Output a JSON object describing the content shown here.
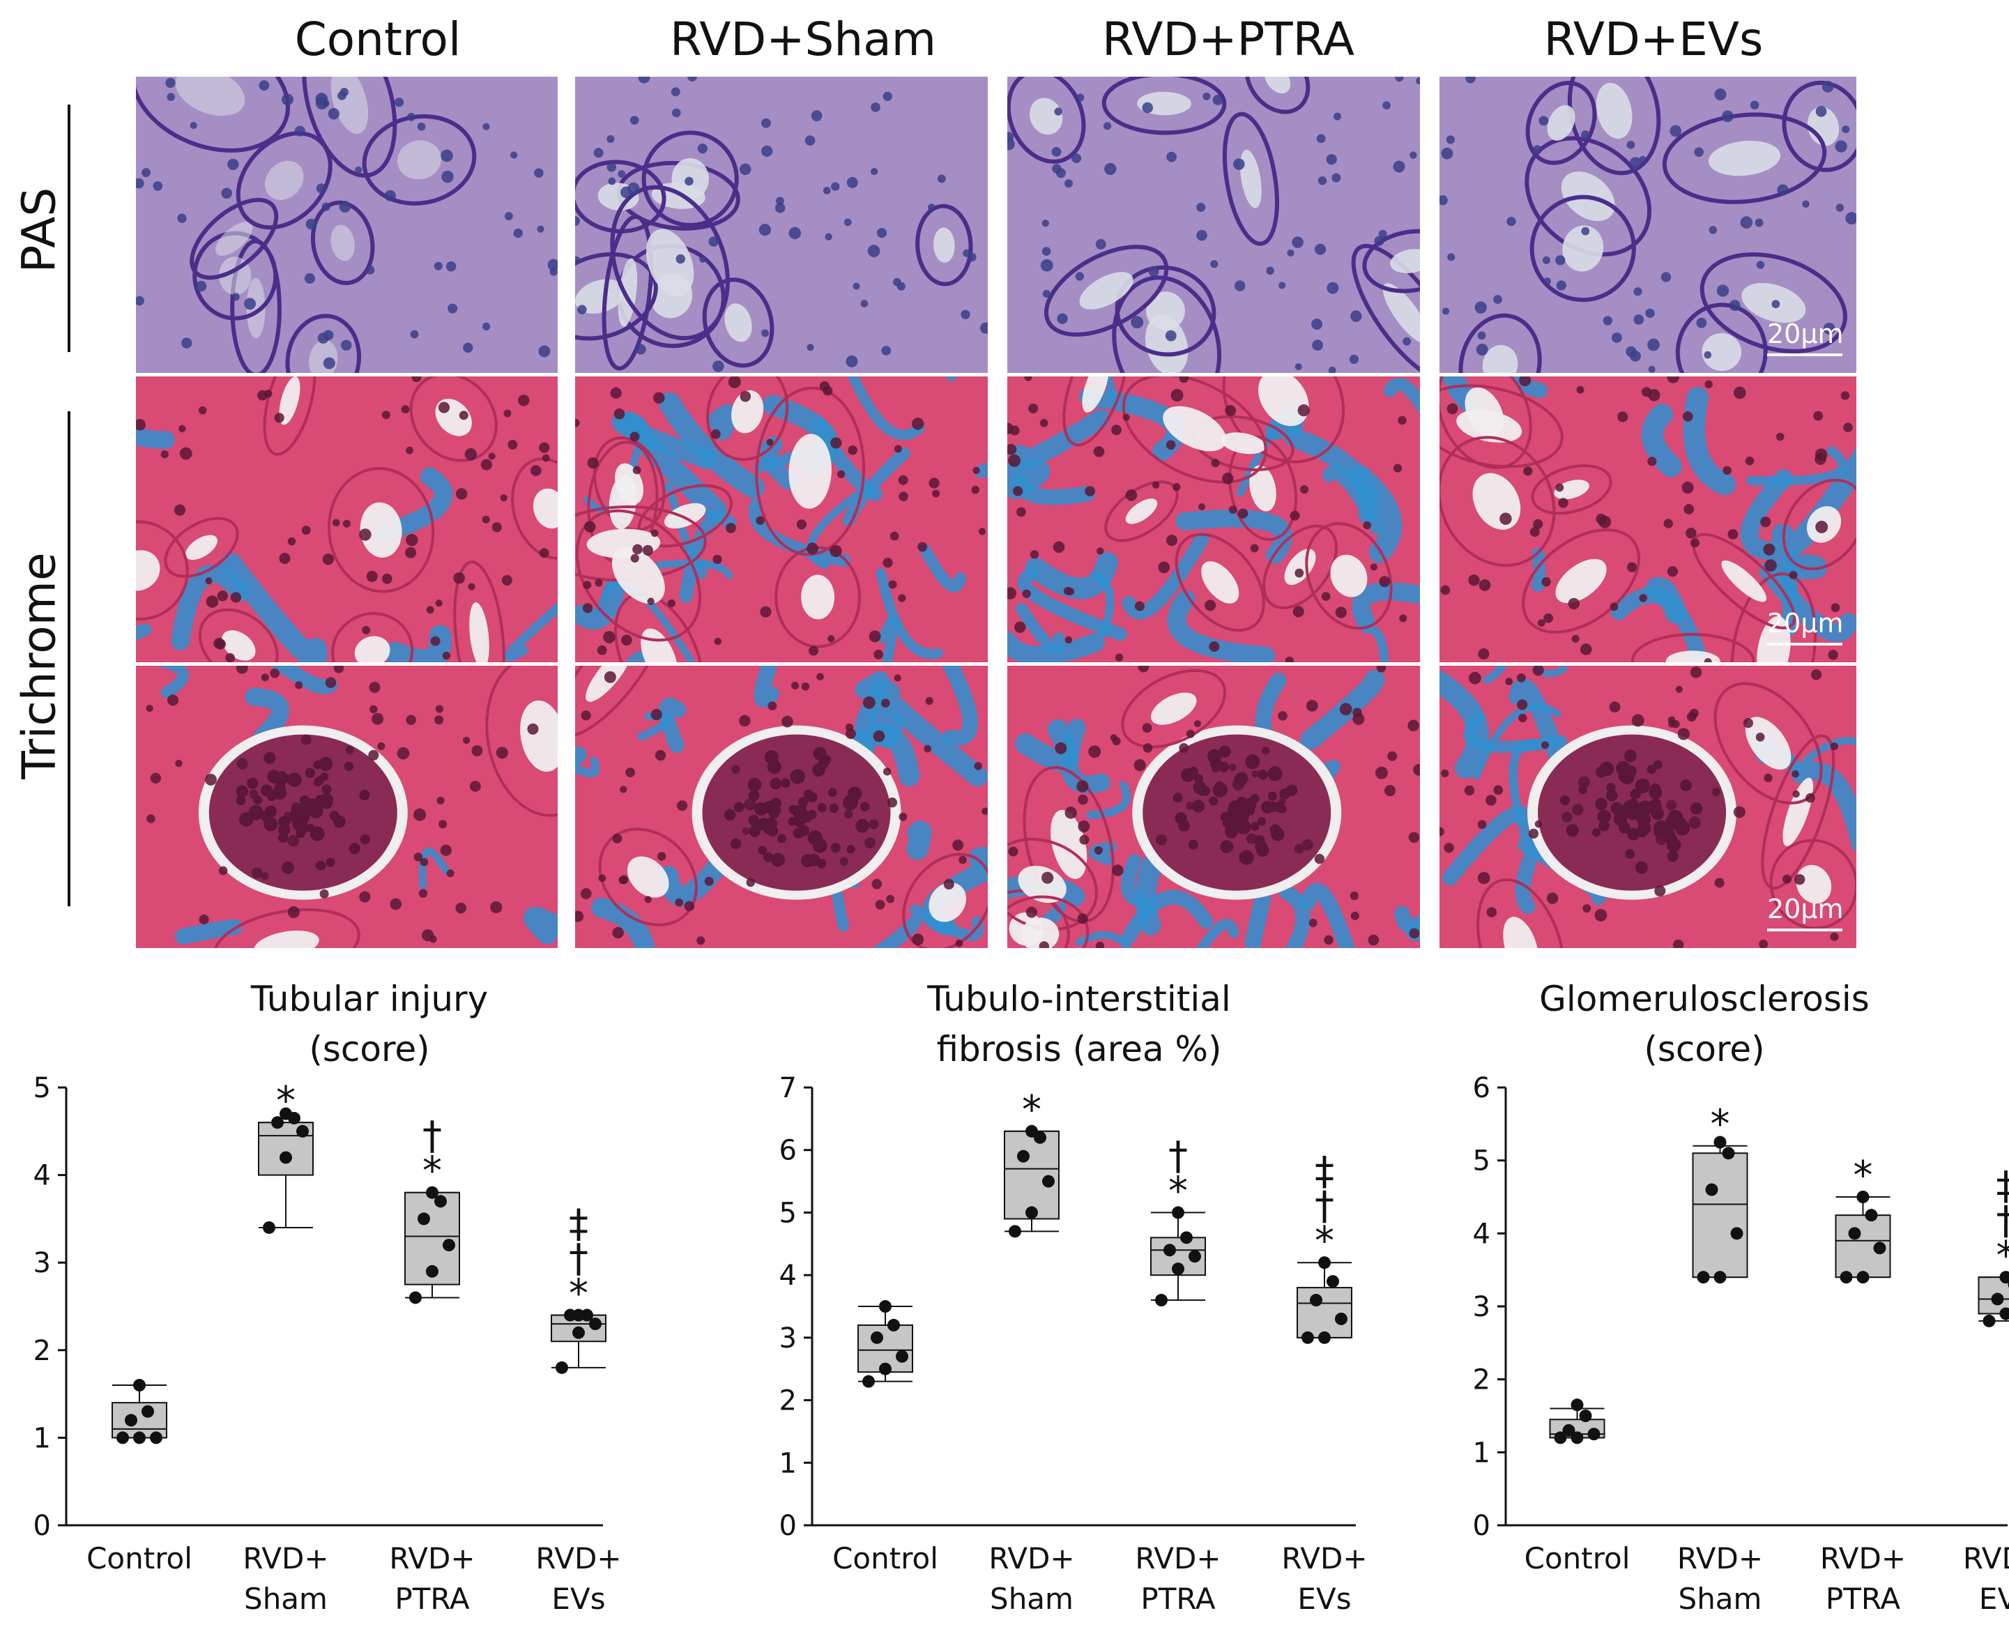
{
  "columns": [
    "Control",
    "RVD+Sham",
    "RVD+PTRA",
    "RVD+EVs"
  ],
  "rows": [
    "PAS",
    "Trichrome"
  ],
  "scale_bar": "20µm",
  "stain_colors": {
    "pas_bg": "#a58ec4",
    "pas_membrane": "#4b2d8a",
    "pas_lumen": "#d9dde6",
    "pas_nuclei": "#3a3f8a",
    "tri_bg": "#d94a74",
    "tri_fibrosis": "#2f8fd0",
    "tri_lumen": "#f1eef0",
    "tri_nuclei": "#5a1737"
  },
  "chart_data": [
    {
      "type": "box",
      "title": [
        "Tubular injury",
        "(score)"
      ],
      "categories": [
        [
          "Control"
        ],
        [
          "RVD+",
          "Sham"
        ],
        [
          "RVD+",
          "PTRA"
        ],
        [
          "RVD+",
          "EVs"
        ]
      ],
      "ylim": [
        0,
        5
      ],
      "yticks": [
        0,
        1,
        2,
        3,
        4,
        5
      ],
      "boxes": [
        {
          "whisker_low": 1.0,
          "q1": 1.0,
          "median": 1.1,
          "q3": 1.4,
          "whisker_high": 1.6
        },
        {
          "whisker_low": 3.4,
          "q1": 4.0,
          "median": 4.45,
          "q3": 4.6,
          "whisker_high": 4.6
        },
        {
          "whisker_low": 2.6,
          "q1": 2.75,
          "median": 3.3,
          "q3": 3.8,
          "whisker_high": 3.8
        },
        {
          "whisker_low": 1.8,
          "q1": 2.1,
          "median": 2.3,
          "q3": 2.4,
          "whisker_high": 2.4
        }
      ],
      "points": [
        [
          1.0,
          1.0,
          1.0,
          1.2,
          1.3,
          1.6
        ],
        [
          3.4,
          4.2,
          4.5,
          4.6,
          4.65,
          4.7
        ],
        [
          2.6,
          2.9,
          3.2,
          3.5,
          3.7,
          3.8
        ],
        [
          1.8,
          2.2,
          2.3,
          2.4,
          2.4,
          2.4
        ]
      ],
      "significance": [
        "",
        "*",
        "*\n†",
        "*\n†\n‡"
      ]
    },
    {
      "type": "box",
      "title": [
        "Tubulo-interstitial",
        "fibrosis (area %)"
      ],
      "categories": [
        [
          "Control"
        ],
        [
          "RVD+",
          "Sham"
        ],
        [
          "RVD+",
          "PTRA"
        ],
        [
          "RVD+",
          "EVs"
        ]
      ],
      "ylim": [
        0,
        7
      ],
      "yticks": [
        0,
        1,
        2,
        3,
        4,
        5,
        6,
        7
      ],
      "boxes": [
        {
          "whisker_low": 2.3,
          "q1": 2.45,
          "median": 2.8,
          "q3": 3.2,
          "whisker_high": 3.5
        },
        {
          "whisker_low": 4.7,
          "q1": 4.9,
          "median": 5.7,
          "q3": 6.3,
          "whisker_high": 6.3
        },
        {
          "whisker_low": 3.6,
          "q1": 4.0,
          "median": 4.4,
          "q3": 4.6,
          "whisker_high": 5.0
        },
        {
          "whisker_low": 3.0,
          "q1": 3.0,
          "median": 3.55,
          "q3": 3.8,
          "whisker_high": 4.2
        }
      ],
      "points": [
        [
          2.3,
          2.5,
          2.7,
          3.0,
          3.2,
          3.5
        ],
        [
          4.7,
          5.0,
          5.5,
          5.9,
          6.2,
          6.3
        ],
        [
          3.6,
          4.1,
          4.3,
          4.4,
          4.6,
          5.0
        ],
        [
          3.0,
          3.0,
          3.3,
          3.6,
          3.9,
          4.2
        ]
      ],
      "significance": [
        "",
        "*",
        "*\n†",
        "*\n†\n‡"
      ]
    },
    {
      "type": "box",
      "title": [
        "Glomerulosclerosis",
        "(score)"
      ],
      "categories": [
        [
          "Control"
        ],
        [
          "RVD+",
          "Sham"
        ],
        [
          "RVD+",
          "PTRA"
        ],
        [
          "RVD+",
          "EVs"
        ]
      ],
      "ylim": [
        0,
        6
      ],
      "yticks": [
        0,
        1,
        2,
        3,
        4,
        5,
        6
      ],
      "boxes": [
        {
          "whisker_low": 1.2,
          "q1": 1.2,
          "median": 1.25,
          "q3": 1.45,
          "whisker_high": 1.6
        },
        {
          "whisker_low": 3.4,
          "q1": 3.4,
          "median": 4.4,
          "q3": 5.1,
          "whisker_high": 5.2
        },
        {
          "whisker_low": 3.4,
          "q1": 3.4,
          "median": 3.9,
          "q3": 4.25,
          "whisker_high": 4.5
        },
        {
          "whisker_low": 2.8,
          "q1": 2.9,
          "median": 3.1,
          "q3": 3.4,
          "whisker_high": 3.4
        }
      ],
      "points": [
        [
          1.2,
          1.2,
          1.25,
          1.3,
          1.5,
          1.65
        ],
        [
          3.4,
          3.4,
          4.0,
          4.6,
          5.1,
          5.25
        ],
        [
          3.4,
          3.4,
          3.8,
          4.0,
          4.25,
          4.5
        ],
        [
          2.8,
          2.9,
          3.0,
          3.1,
          3.3,
          3.4
        ]
      ],
      "significance": [
        "",
        "*",
        "*",
        "*\n†\n‡"
      ]
    }
  ]
}
